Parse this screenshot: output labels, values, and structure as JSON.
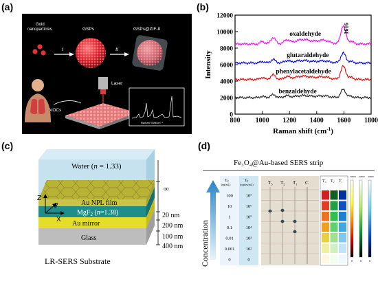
{
  "labels": {
    "a": "(a)",
    "b": "(b)",
    "c": "(c)",
    "d": "(d)"
  },
  "panel_a": {
    "gold": "Gold",
    "nanoparticles": "nanoparticles",
    "gsps": "GSPs",
    "gsps_zif8": "GSPs@ZIF-8",
    "step_i": "i",
    "step_ii": "ii",
    "laser": "Laser",
    "vocs": "VOCs",
    "raman_axis": "Raman Shift/cm⁻¹"
  },
  "chart_data": {
    "type": "line",
    "xlabel": "Raman shift (cm",
    "xlabel_sup": "-1",
    "xlabel_close": ")",
    "ylabel": "Intensity",
    "xlim": [
      800,
      1800
    ],
    "ylim": [
      0,
      12000
    ],
    "xticks": [
      800,
      1000,
      1200,
      1400,
      1600,
      1800
    ],
    "yticks": [
      0,
      2000,
      4000,
      6000,
      8000,
      10000,
      12000
    ],
    "peak_annotation": {
      "x": 1616,
      "text": "1616"
    },
    "series": [
      {
        "name": "oxaldehyde",
        "color": "#ff00ff",
        "baseline": 8500,
        "peak": 10700
      },
      {
        "name": "glutaraldehyde",
        "color": "#0000ee",
        "baseline": 6200,
        "peak": 7400
      },
      {
        "name": "phenylacetaldehyde",
        "color": "#ee0000",
        "baseline": 4200,
        "peak": 5800
      },
      {
        "name": "benzaldehyde",
        "color": "#222222",
        "baseline": 2000,
        "peak": 3000
      }
    ]
  },
  "panel_c": {
    "water": "Water (",
    "water_n": "n",
    "water_val": " = 1.33)",
    "au_npl": "Au NPL film",
    "mgf2": "MgF",
    "mgf2_sub": "2",
    "mgf2_n": "n",
    "mgf2_val": "=1.38)",
    "au_mirror": "Au mirror",
    "glass": "Glass",
    "dims": [
      "∞",
      "20 nm",
      "200 nm",
      "100 nm",
      "400 nm"
    ],
    "axes": {
      "z": "Z",
      "y": "y",
      "x": "X"
    },
    "caption": "LR-SERS Substrate"
  },
  "panel_d": {
    "title": "Fe₃O₄@Au-based SERS strip",
    "col_t2_head": "T",
    "col_t2_sub": "2",
    "col_t2_unit": "(ng/mL)",
    "col_t1_head": "T",
    "col_t1_sub": "1",
    "col_t1_unit": "(copies/mL)",
    "t2_values": [
      "100",
      "10",
      "1",
      "0.1",
      "0.01",
      "0.001",
      "0"
    ],
    "t1_values": [
      "10⁷",
      "10⁶",
      "10⁵",
      "10⁴",
      "10³",
      "10²",
      "0"
    ],
    "strip_labels": [
      "T₃",
      "T₂",
      "T₁",
      "C"
    ],
    "heat_labels": [
      "T₃",
      "T₂",
      "T₁"
    ],
    "scale_values": [
      "50000",
      "50000",
      "40000"
    ],
    "scale_zero": "0",
    "concentration": "Concentration"
  }
}
